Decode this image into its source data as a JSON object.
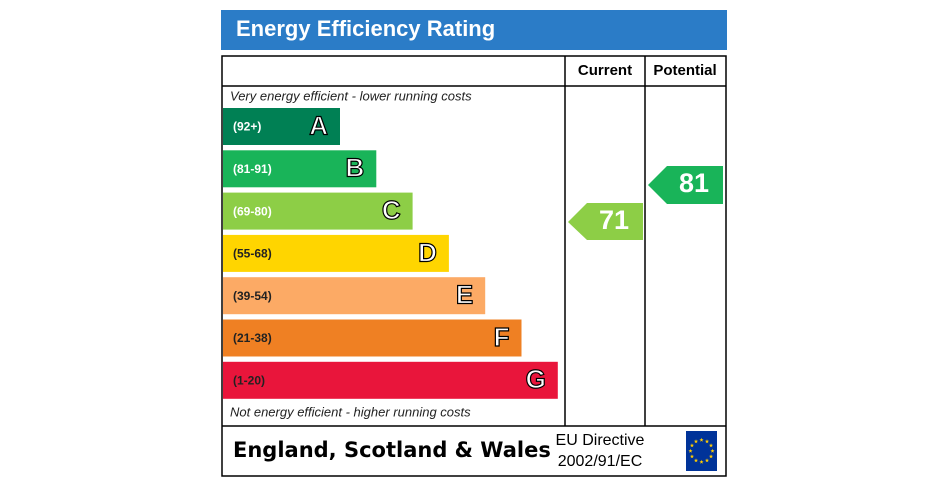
{
  "header": {
    "title": "Energy Efficiency Rating"
  },
  "columns": {
    "current": "Current",
    "potential": "Potential"
  },
  "top_note": "Very energy efficient - lower running costs",
  "bottom_note": "Not energy efficient - higher running costs",
  "bands": [
    {
      "range": "(92+)",
      "letter": "A",
      "color": "#008054"
    },
    {
      "range": "(81-91)",
      "letter": "B",
      "color": "#19b459"
    },
    {
      "range": "(69-80)",
      "letter": "C",
      "color": "#8dce46"
    },
    {
      "range": "(55-68)",
      "letter": "D",
      "color": "#ffd500"
    },
    {
      "range": "(39-54)",
      "letter": "E",
      "color": "#fcaa65"
    },
    {
      "range": "(21-38)",
      "letter": "F",
      "color": "#ef8023"
    },
    {
      "range": "(1-20)",
      "letter": "G",
      "color": "#e9153b"
    }
  ],
  "current": {
    "value": 71,
    "color": "#8dce46"
  },
  "potential": {
    "value": 81,
    "color": "#19b459"
  },
  "footer": {
    "region": "England, Scotland & Wales",
    "directive_line1": "EU Directive",
    "directive_line2": "2002/91/EC"
  }
}
